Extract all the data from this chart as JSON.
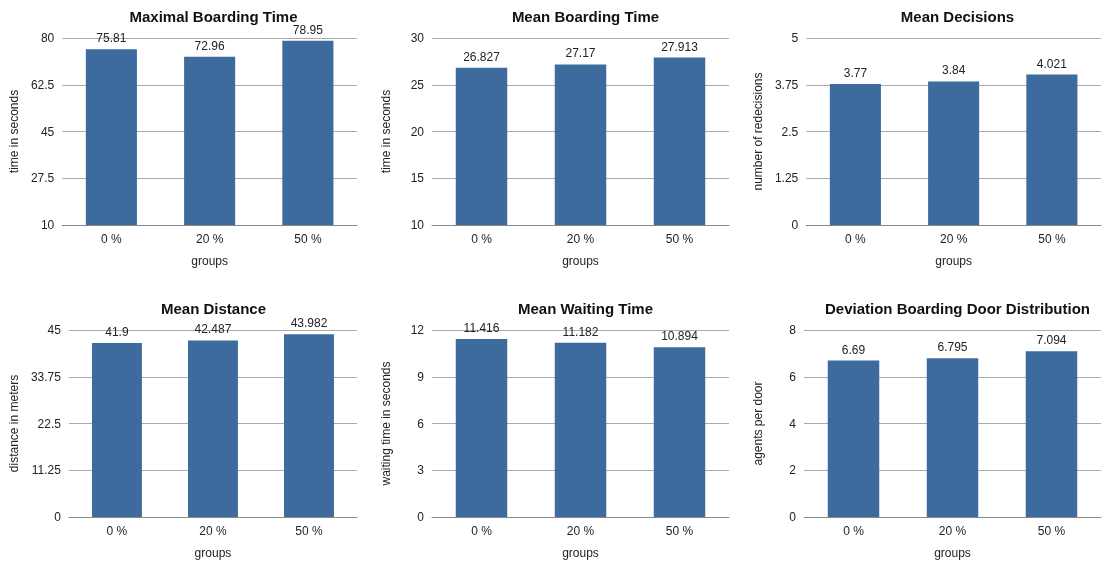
{
  "chart_data": [
    {
      "type": "bar",
      "title": "Maximal Boarding Time",
      "xlabel": "groups",
      "ylabel": "time in seconds",
      "categories": [
        "0 %",
        "20 %",
        "50 %"
      ],
      "values": [
        75.81,
        72.96,
        78.95
      ],
      "color": "#3d6b9e",
      "ylim": [
        10,
        80
      ],
      "yticks": [
        10,
        27.5,
        45,
        62.5,
        80
      ],
      "grid": "y",
      "data_labels": true
    },
    {
      "type": "bar",
      "title": "Mean Boarding Time",
      "xlabel": "groups",
      "ylabel": "time in seconds",
      "categories": [
        "0 %",
        "20 %",
        "50 %"
      ],
      "values": [
        26.827,
        27.17,
        27.913
      ],
      "color": "#3d6b9e",
      "ylim": [
        10,
        30
      ],
      "yticks": [
        10,
        15,
        20,
        25,
        30
      ],
      "grid": "y",
      "data_labels": true
    },
    {
      "type": "bar",
      "title": "Mean Decisions",
      "xlabel": "groups",
      "ylabel": "number of redecisions",
      "categories": [
        "0 %",
        "20 %",
        "50 %"
      ],
      "values": [
        3.77,
        3.84,
        4.021
      ],
      "color": "#3d6b9e",
      "ylim": [
        0,
        5
      ],
      "yticks": [
        0,
        1.25,
        2.5,
        3.75,
        5
      ],
      "grid": "y",
      "data_labels": true
    },
    {
      "type": "bar",
      "title": "Mean Distance",
      "xlabel": "groups",
      "ylabel": "distance in meters",
      "categories": [
        "0 %",
        "20 %",
        "50 %"
      ],
      "values": [
        41.9,
        42.487,
        43.982
      ],
      "color": "#3d6b9e",
      "ylim": [
        0,
        45
      ],
      "yticks": [
        0,
        11.25,
        22.5,
        33.75,
        45
      ],
      "grid": "y",
      "data_labels": true
    },
    {
      "type": "bar",
      "title": "Mean Waiting Time",
      "xlabel": "groups",
      "ylabel": "waiting time in seconds",
      "categories": [
        "0 %",
        "20 %",
        "50 %"
      ],
      "values": [
        11.416,
        11.182,
        10.894
      ],
      "color": "#3d6b9e",
      "ylim": [
        0,
        12
      ],
      "yticks": [
        0,
        3,
        6,
        9,
        12
      ],
      "grid": "y",
      "data_labels": true
    },
    {
      "type": "bar",
      "title": "Deviation Boarding Door Distribution",
      "xlabel": "groups",
      "ylabel": "agents per door",
      "categories": [
        "0 %",
        "20 %",
        "50 %"
      ],
      "values": [
        6.69,
        6.795,
        7.094
      ],
      "color": "#3d6b9e",
      "ylim": [
        0,
        8
      ],
      "yticks": [
        0,
        2,
        4,
        6,
        8
      ],
      "grid": "y",
      "data_labels": true
    }
  ]
}
